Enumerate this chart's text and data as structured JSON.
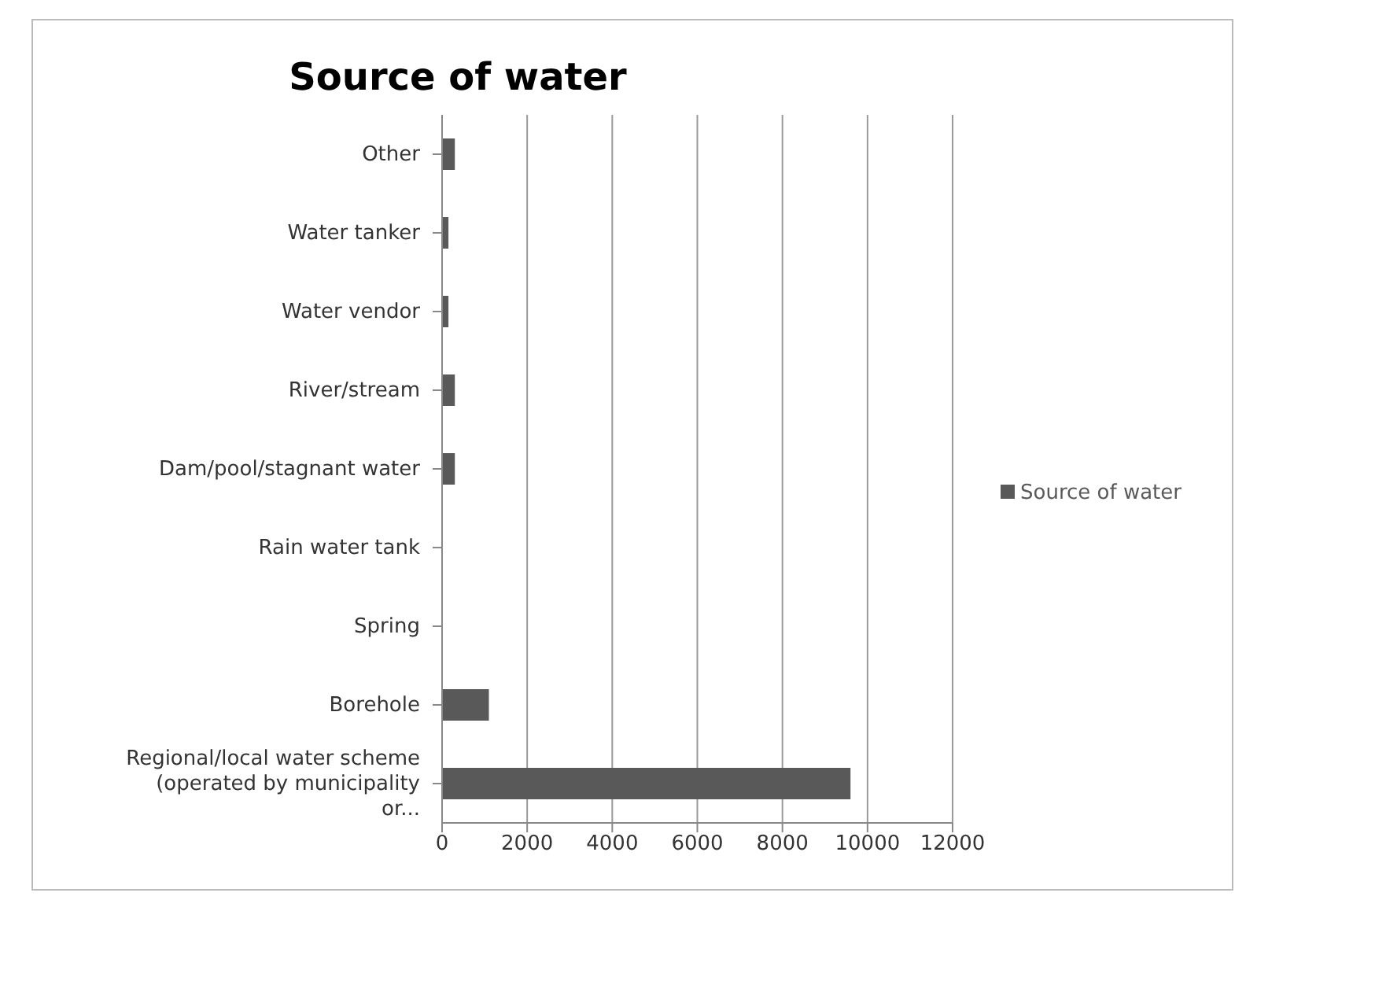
{
  "chart_data": {
    "type": "bar",
    "orientation": "horizontal",
    "title": "Source of water",
    "categories": [
      "Other",
      "Water tanker",
      "Water vendor",
      "River/stream",
      "Dam/pool/stagnant water",
      "Rain water tank",
      "Spring",
      "Borehole",
      "Regional/local water scheme (operated by municipality or..."
    ],
    "series": [
      {
        "name": "Source of water",
        "color": "#595959",
        "values": [
          300,
          150,
          150,
          300,
          300,
          0,
          0,
          1100,
          9600
        ]
      }
    ],
    "xlim": [
      0,
      12000
    ],
    "xticks": [
      0,
      2000,
      4000,
      6000,
      8000,
      10000,
      12000
    ],
    "grid": "x",
    "legend": "right"
  }
}
